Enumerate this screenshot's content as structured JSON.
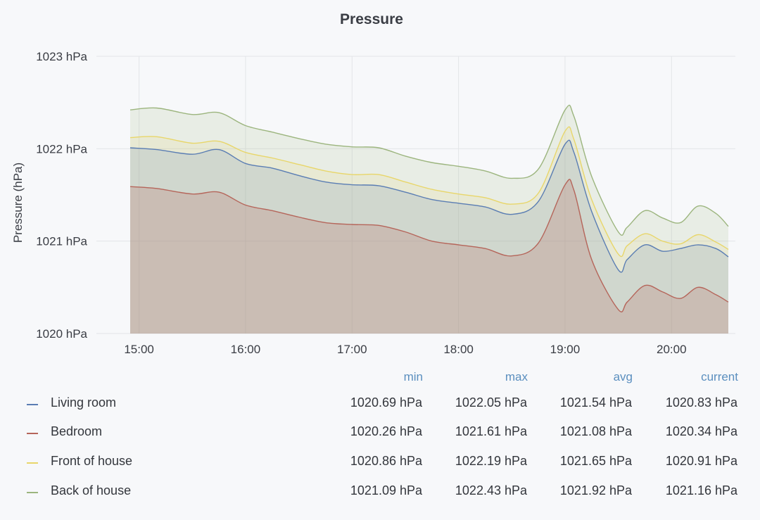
{
  "title": "Pressure",
  "colors": {
    "living": "#5a7db3",
    "bedroom": "#b5655a",
    "front": "#e8d66a",
    "back": "#9cb57e",
    "grid": "#e3e5e8",
    "legend_header": "#5b8fbf"
  },
  "legend": {
    "headers": [
      "min",
      "max",
      "avg",
      "current"
    ],
    "rows": [
      {
        "name": "Living room",
        "values": [
          "1020.69 hPa",
          "1022.05 hPa",
          "1021.54 hPa",
          "1020.83 hPa"
        ]
      },
      {
        "name": "Bedroom",
        "values": [
          "1020.26 hPa",
          "1021.61 hPa",
          "1021.08 hPa",
          "1020.34 hPa"
        ]
      },
      {
        "name": "Front of house",
        "values": [
          "1020.86 hPa",
          "1022.19 hPa",
          "1021.65 hPa",
          "1020.91 hPa"
        ]
      },
      {
        "name": "Back of house",
        "values": [
          "1021.09 hPa",
          "1022.43 hPa",
          "1021.92 hPa",
          "1021.16 hPa"
        ]
      }
    ]
  },
  "chart_data": {
    "type": "area",
    "title": "Pressure",
    "ylabel": "Pressure (hPa)",
    "xlabel": "",
    "ylim": [
      1020,
      1023
    ],
    "yticks": [
      1020,
      1021,
      1022,
      1023
    ],
    "ytick_labels": [
      "1020 hPa",
      "1021 hPa",
      "1022 hPa",
      "1023 hPa"
    ],
    "xlim": [
      "14:55",
      "20:32"
    ],
    "xticks": [
      "15:00",
      "16:00",
      "17:00",
      "18:00",
      "19:00",
      "20:00"
    ],
    "grid": true,
    "x": [
      "14:55",
      "15:10",
      "15:30",
      "15:45",
      "16:00",
      "16:15",
      "16:30",
      "16:45",
      "17:00",
      "17:15",
      "17:30",
      "17:45",
      "18:00",
      "18:15",
      "18:30",
      "18:45",
      "19:00",
      "19:05",
      "19:15",
      "19:30",
      "19:35",
      "19:45",
      "19:55",
      "20:05",
      "20:15",
      "20:25",
      "20:32"
    ],
    "series": [
      {
        "name": "Back of house",
        "values": [
          1022.42,
          1022.44,
          1022.37,
          1022.39,
          1022.25,
          1022.18,
          1022.11,
          1022.05,
          1022.02,
          1022.01,
          1021.92,
          1021.85,
          1021.81,
          1021.76,
          1021.68,
          1021.78,
          1022.42,
          1022.35,
          1021.7,
          1021.1,
          1021.15,
          1021.33,
          1021.25,
          1021.2,
          1021.38,
          1021.3,
          1021.16
        ]
      },
      {
        "name": "Front of house",
        "values": [
          1022.12,
          1022.13,
          1022.06,
          1022.08,
          1021.96,
          1021.9,
          1021.83,
          1021.76,
          1021.72,
          1021.72,
          1021.64,
          1021.56,
          1021.51,
          1021.47,
          1021.4,
          1021.52,
          1022.19,
          1022.1,
          1021.45,
          1020.86,
          1020.95,
          1021.08,
          1021.0,
          1020.97,
          1021.07,
          1020.99,
          1020.91
        ]
      },
      {
        "name": "Living room",
        "values": [
          1022.01,
          1021.99,
          1021.94,
          1021.99,
          1021.84,
          1021.79,
          1021.71,
          1021.64,
          1021.61,
          1021.6,
          1021.53,
          1021.45,
          1021.41,
          1021.37,
          1021.29,
          1021.43,
          1022.05,
          1021.96,
          1021.32,
          1020.69,
          1020.8,
          1020.96,
          1020.89,
          1020.92,
          1020.96,
          1020.92,
          1020.83
        ]
      },
      {
        "name": "Bedroom",
        "values": [
          1021.59,
          1021.57,
          1021.51,
          1021.53,
          1021.39,
          1021.33,
          1021.26,
          1021.2,
          1021.18,
          1021.17,
          1021.1,
          1021.0,
          1020.96,
          1020.92,
          1020.84,
          1020.98,
          1021.61,
          1021.55,
          1020.8,
          1020.26,
          1020.34,
          1020.52,
          1020.45,
          1020.38,
          1020.5,
          1020.42,
          1020.34
        ]
      }
    ]
  }
}
